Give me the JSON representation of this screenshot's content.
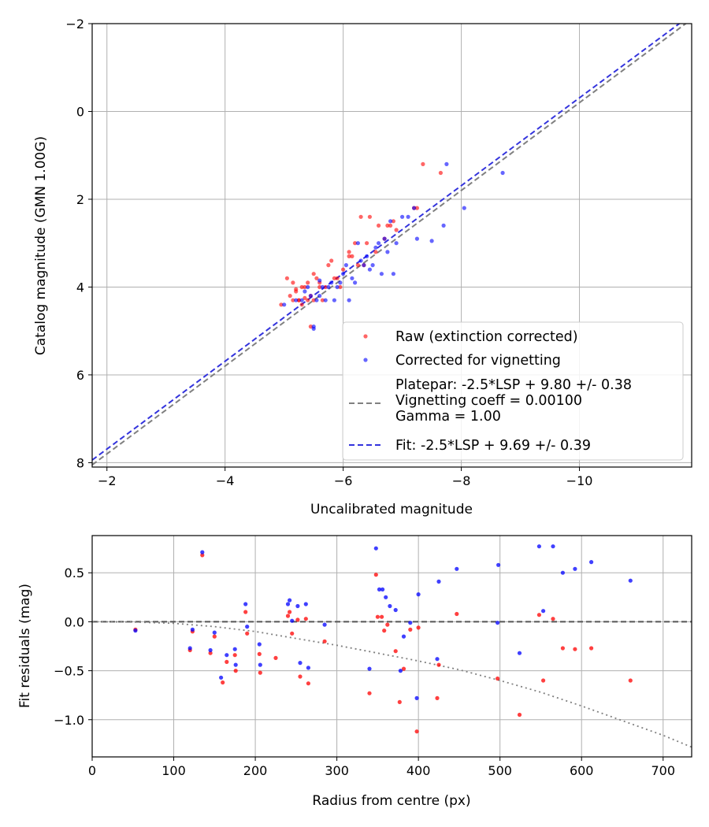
{
  "chart_data": [
    {
      "type": "scatter",
      "title": "",
      "xlabel": "Uncalibrated magnitude",
      "ylabel": "Catalog magnitude (GMN 1.00G)",
      "xlim": [
        -1.75,
        -11.9
      ],
      "ylim": [
        8.1,
        -2.0
      ],
      "x_inverted": true,
      "y_inverted": true,
      "xticks": [
        -2,
        -4,
        -6,
        -8,
        -10
      ],
      "xtick_labels": [
        "−2",
        "−4",
        "−6",
        "−8",
        "−10"
      ],
      "yticks": [
        -2,
        0,
        2,
        4,
        6,
        8
      ],
      "ytick_labels": [
        "−2",
        "0",
        "2",
        "4",
        "6",
        "8"
      ],
      "grid": true,
      "legend": "lower-right",
      "series": [
        {
          "name": "Raw (extinction corrected)",
          "kind": "points",
          "color": "#ff0000",
          "x": [
            -4.95,
            -5.1,
            -5.15,
            -5.2,
            -5.25,
            -5.3,
            -5.35,
            -5.4,
            -5.45,
            -5.5,
            -5.55,
            -5.6,
            -5.7,
            -5.8,
            -5.9,
            -6.0,
            -6.1,
            -6.2,
            -6.3,
            -6.35,
            -6.45,
            -6.55,
            -6.7,
            -6.75,
            -6.8,
            -6.85,
            -6.9,
            -7.2,
            -7.25,
            -7.35,
            -7.65,
            -5.05,
            -5.15,
            -5.3,
            -5.45,
            -5.6,
            -5.75,
            -5.95,
            -6.1,
            -6.25,
            -5.35,
            -5.5,
            -5.2,
            -6.4,
            -5.85,
            -5.65,
            -6.6,
            -6.15,
            -5.25,
            -5.4
          ],
          "y": [
            4.4,
            4.2,
            4.3,
            4.1,
            4.3,
            4.0,
            4.25,
            4.3,
            4.2,
            4.3,
            3.8,
            3.9,
            4.0,
            3.4,
            3.8,
            3.6,
            3.3,
            3.0,
            2.4,
            3.5,
            2.4,
            3.2,
            2.9,
            2.6,
            2.6,
            2.5,
            2.7,
            2.2,
            2.2,
            1.2,
            1.4,
            3.8,
            3.9,
            4.4,
            4.9,
            4.0,
            3.5,
            4.0,
            3.2,
            3.5,
            4.0,
            3.7,
            4.05,
            3.0,
            3.8,
            4.3,
            2.6,
            3.3,
            4.3,
            3.9
          ]
        },
        {
          "name": "Corrected for vignetting",
          "kind": "points",
          "color": "#0000ff",
          "x": [
            -5.0,
            -5.2,
            -5.3,
            -5.35,
            -5.45,
            -5.5,
            -5.55,
            -5.6,
            -5.7,
            -5.8,
            -5.9,
            -6.0,
            -6.05,
            -6.2,
            -6.25,
            -6.3,
            -6.4,
            -6.5,
            -6.6,
            -6.7,
            -6.75,
            -6.8,
            -6.85,
            -7.0,
            -7.1,
            -7.2,
            -7.25,
            -7.5,
            -7.7,
            -7.75,
            -8.05,
            -8.7,
            -5.5,
            -5.65,
            -5.85,
            -6.1,
            -6.15,
            -6.35,
            -6.55,
            -6.65,
            -5.4,
            -5.6,
            -5.95,
            -6.45,
            -5.75,
            -6.9
          ],
          "y": [
            4.4,
            4.3,
            4.3,
            4.1,
            4.2,
            4.95,
            4.3,
            3.85,
            4.3,
            3.9,
            4.0,
            3.7,
            3.5,
            3.9,
            3.0,
            3.4,
            3.3,
            3.5,
            3.0,
            2.9,
            3.2,
            2.5,
            3.7,
            2.4,
            2.4,
            2.2,
            2.9,
            2.95,
            2.6,
            1.2,
            2.2,
            1.4,
            4.9,
            4.0,
            4.3,
            4.3,
            3.8,
            3.5,
            3.1,
            3.7,
            4.0,
            4.2,
            3.9,
            3.6,
            4.0,
            3.0
          ]
        },
        {
          "name": "Platepar: -2.5*LSP + 9.80 +/- 0.38\nVignetting coeff = 0.00100\nGamma = 1.00",
          "kind": "dashed-line",
          "color": "#808080",
          "x": [
            -1.75,
            -11.9
          ],
          "y": [
            8.05,
            -2.1
          ]
        },
        {
          "name": "Fit: -2.5*LSP + 9.69 +/- 0.39",
          "kind": "dashed-line",
          "color": "#3333dd",
          "x": [
            -1.75,
            -11.9
          ],
          "y": [
            7.94,
            -2.21
          ]
        }
      ]
    },
    {
      "type": "scatter",
      "title": "",
      "xlabel": "Radius from centre (px)",
      "ylabel": "Fit residuals (mag)",
      "xlim": [
        0,
        735
      ],
      "ylim": [
        -1.38,
        0.88
      ],
      "xticks": [
        0,
        100,
        200,
        300,
        400,
        500,
        600,
        700
      ],
      "xtick_labels": [
        "0",
        "100",
        "200",
        "300",
        "400",
        "500",
        "600",
        "700"
      ],
      "yticks": [
        -1.0,
        -0.5,
        0.0,
        0.5
      ],
      "ytick_labels": [
        "−1.0",
        "−0.5",
        "0.0",
        "0.5"
      ],
      "grid": true,
      "series": [
        {
          "kind": "points",
          "color": "#ff0000",
          "x": [
            53,
            120,
            123,
            135,
            145,
            150,
            160,
            165,
            175,
            176,
            188,
            190,
            205,
            206,
            225,
            240,
            242,
            245,
            252,
            255,
            262,
            265,
            285,
            340,
            348,
            350,
            355,
            358,
            362,
            372,
            377,
            382,
            390,
            398,
            400,
            423,
            425,
            447,
            497,
            524,
            548,
            553,
            565,
            577,
            592,
            612,
            660
          ],
          "y": [
            -0.08,
            -0.29,
            -0.1,
            0.68,
            -0.32,
            -0.15,
            -0.62,
            -0.41,
            -0.34,
            -0.5,
            0.1,
            -0.12,
            -0.33,
            -0.52,
            -0.37,
            0.06,
            0.1,
            -0.12,
            0.02,
            -0.56,
            0.03,
            -0.63,
            -0.2,
            -0.73,
            0.48,
            0.05,
            0.05,
            -0.09,
            -0.03,
            -0.3,
            -0.82,
            -0.48,
            -0.08,
            -1.12,
            -0.06,
            -0.78,
            -0.44,
            0.08,
            -0.58,
            -0.95,
            0.07,
            -0.6,
            0.03,
            -0.27,
            -0.28,
            -0.27,
            -0.6
          ]
        },
        {
          "kind": "points",
          "color": "#0000ff",
          "x": [
            53,
            120,
            123,
            135,
            145,
            150,
            158,
            165,
            175,
            176,
            188,
            190,
            205,
            206,
            240,
            242,
            245,
            252,
            255,
            262,
            265,
            285,
            340,
            348,
            352,
            356,
            360,
            365,
            372,
            378,
            382,
            390,
            398,
            400,
            423,
            425,
            447,
            497,
            498,
            524,
            548,
            553,
            565,
            577,
            592,
            612,
            660
          ],
          "y": [
            -0.09,
            -0.27,
            -0.08,
            0.71,
            -0.29,
            -0.11,
            -0.57,
            -0.34,
            -0.28,
            -0.44,
            0.18,
            -0.05,
            -0.23,
            -0.44,
            0.18,
            0.22,
            0.01,
            0.16,
            -0.42,
            0.18,
            -0.47,
            -0.03,
            -0.48,
            0.75,
            0.33,
            0.33,
            0.25,
            0.16,
            0.12,
            -0.5,
            -0.15,
            -0.01,
            -0.78,
            0.28,
            -0.38,
            0.41,
            0.54,
            -0.01,
            0.58,
            -0.32,
            0.77,
            0.11,
            0.77,
            0.5,
            0.54,
            0.61,
            0.42
          ]
        },
        {
          "kind": "dashed-line",
          "color": "#555555",
          "x": [
            0,
            735
          ],
          "y": [
            0,
            0
          ]
        },
        {
          "kind": "dotted-curve",
          "color": "#808080",
          "x": [
            0,
            50,
            100,
            150,
            200,
            250,
            300,
            350,
            400,
            450,
            500,
            550,
            600,
            650,
            700,
            735
          ],
          "y": [
            0,
            -0.002,
            -0.016,
            -0.05,
            -0.1,
            -0.17,
            -0.24,
            -0.32,
            -0.4,
            -0.49,
            -0.6,
            -0.72,
            -0.86,
            -1.01,
            -1.16,
            -1.28
          ]
        }
      ]
    }
  ]
}
